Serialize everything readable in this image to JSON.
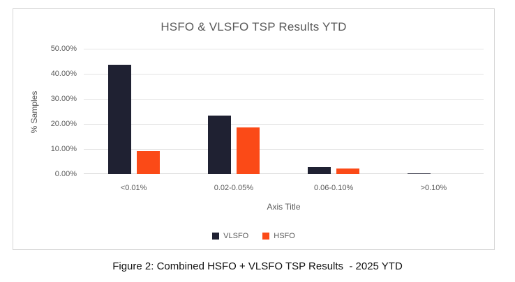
{
  "figure": {
    "caption": "Figure 2: Combined HSFO + VLSFO TSP Results  - 2025 YTD"
  },
  "chart_data": {
    "type": "bar",
    "title": "HSFO & VLSFO TSP Results YTD",
    "xlabel": "Axis Title",
    "ylabel": "% Samples",
    "categories": [
      "<0.01%",
      "0.02-0.05%",
      "0.06-0.10%",
      ">0.10%"
    ],
    "series": [
      {
        "name": "VLSFO",
        "color": "#1F2132",
        "values": [
          43.7,
          23.3,
          2.7,
          0.3
        ]
      },
      {
        "name": "HSFO",
        "color": "#FB4A17",
        "values": [
          9.3,
          18.7,
          2.2,
          0.0
        ]
      }
    ],
    "ylim": [
      0,
      50
    ],
    "ytick_step": 10,
    "ytick_labels": [
      "50.00%",
      "40.00%",
      "30.00%",
      "20.00%",
      "10.00%",
      "0.00%"
    ],
    "grid": true,
    "legend_position": "bottom",
    "colors": {
      "text_gray": "#595959",
      "gridline": "#E3E3E3",
      "frame_border": "#D6D6D6",
      "background": "#FFFFFF"
    }
  }
}
